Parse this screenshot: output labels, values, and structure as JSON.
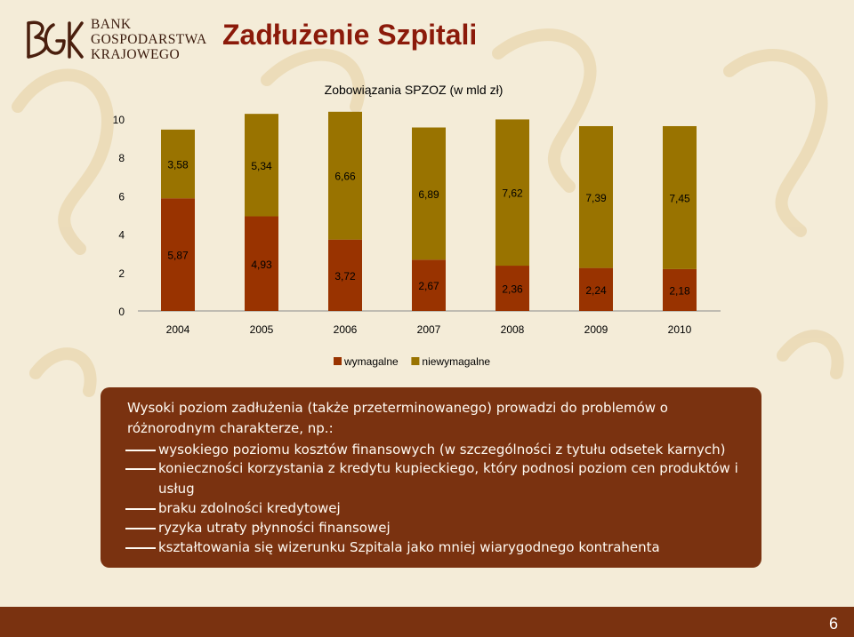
{
  "logo": {
    "line1": "BANK",
    "line2": "GOSPODARSTWA",
    "line3": "KRAJOWEGO"
  },
  "title": "Zadłużenie Szpitali",
  "chart_data": {
    "type": "bar",
    "stacked": true,
    "title": "Zobowiązania SPZOZ (w mld zł)",
    "categories": [
      "2004",
      "2005",
      "2006",
      "2007",
      "2008",
      "2009",
      "2010"
    ],
    "series": [
      {
        "name": "wymagalne",
        "color": "#993300",
        "values": [
          5.87,
          4.93,
          3.72,
          2.67,
          2.36,
          2.24,
          2.18
        ],
        "labels": [
          "5,87",
          "4,93",
          "3,72",
          "2,67",
          "2,36",
          "2,24",
          "2,18"
        ]
      },
      {
        "name": "niewymagalne",
        "color": "#997300",
        "values": [
          3.58,
          5.34,
          6.66,
          6.89,
          7.62,
          7.39,
          7.45
        ],
        "labels": [
          "3,58",
          "5,34",
          "6,66",
          "6,89",
          "7,62",
          "7,39",
          "7,45"
        ]
      }
    ],
    "yticks": [
      0,
      2,
      4,
      6,
      8,
      10
    ],
    "ylim": [
      0,
      10
    ],
    "xlabel": "",
    "ylabel": "",
    "legend_position": "bottom"
  },
  "info_box": {
    "intro": "Wysoki poziom zadłużenia (także przeterminowanego) prowadzi do problemów o różnorodnym charakterze, np.:",
    "items": [
      "wysokiego poziomu kosztów finansowych (w szczególności z tytułu odsetek karnych)",
      "konieczności korzystania z kredytu kupieckiego, który podnosi poziom cen produktów i usług",
      "braku zdolności kredytowej",
      "ryzyka utraty płynności finansowej",
      "kształtowania się wizerunku Szpitala jako mniej wiarygodnego kontrahenta"
    ]
  },
  "page_number": "6"
}
